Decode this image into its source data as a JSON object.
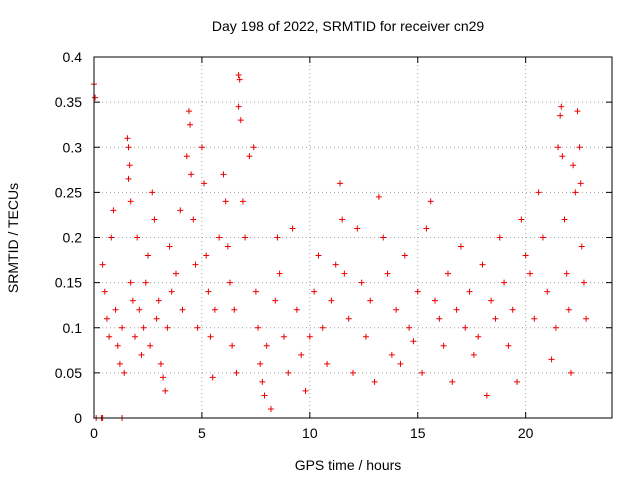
{
  "chart_data": {
    "type": "scatter",
    "title": "Day 198 of 2022, SRMTID for receiver cn29",
    "xlabel": "GPS time / hours",
    "ylabel": "SRMTID / TECUs",
    "xlim": [
      0,
      24
    ],
    "ylim": [
      0,
      0.4
    ],
    "x_ticks": [
      0,
      5,
      10,
      15,
      20
    ],
    "y_ticks": [
      0,
      0.05,
      0.1,
      0.15,
      0.2,
      0.25,
      0.3,
      0.35,
      0.4
    ],
    "x_tick_labels": [
      "0",
      "5",
      "10",
      "15",
      "20"
    ],
    "y_tick_labels": [
      "0",
      "0.05",
      "0.1",
      "0.15",
      "0.2",
      "0.25",
      "0.3",
      "0.35",
      "0.4"
    ],
    "grid": true,
    "marker": "+",
    "marker_color": "#ee0000",
    "series": [
      {
        "name": "SRMTID",
        "points": [
          [
            0.0,
            0.37
          ],
          [
            0.05,
            0.355
          ],
          [
            0.1,
            0.0
          ],
          [
            0.35,
            0.0
          ],
          [
            0.4,
            0.0
          ],
          [
            1.3,
            0.0
          ],
          [
            0.4,
            0.17
          ],
          [
            0.5,
            0.14
          ],
          [
            0.6,
            0.11
          ],
          [
            0.7,
            0.09
          ],
          [
            0.8,
            0.2
          ],
          [
            0.9,
            0.23
          ],
          [
            1.0,
            0.12
          ],
          [
            1.1,
            0.08
          ],
          [
            1.2,
            0.06
          ],
          [
            1.3,
            0.1
          ],
          [
            1.4,
            0.05
          ],
          [
            1.55,
            0.31
          ],
          [
            1.6,
            0.3
          ],
          [
            1.65,
            0.28
          ],
          [
            1.7,
            0.24
          ],
          [
            1.6,
            0.265
          ],
          [
            1.7,
            0.15
          ],
          [
            1.8,
            0.13
          ],
          [
            1.9,
            0.09
          ],
          [
            2.0,
            0.2
          ],
          [
            2.1,
            0.12
          ],
          [
            2.2,
            0.07
          ],
          [
            2.3,
            0.1
          ],
          [
            2.4,
            0.15
          ],
          [
            2.5,
            0.18
          ],
          [
            2.6,
            0.08
          ],
          [
            2.7,
            0.25
          ],
          [
            2.8,
            0.22
          ],
          [
            2.9,
            0.11
          ],
          [
            3.0,
            0.13
          ],
          [
            3.1,
            0.06
          ],
          [
            3.2,
            0.045
          ],
          [
            3.3,
            0.03
          ],
          [
            3.4,
            0.1
          ],
          [
            3.5,
            0.19
          ],
          [
            3.6,
            0.14
          ],
          [
            3.8,
            0.16
          ],
          [
            4.0,
            0.23
          ],
          [
            4.1,
            0.12
          ],
          [
            4.3,
            0.29
          ],
          [
            4.4,
            0.34
          ],
          [
            4.45,
            0.325
          ],
          [
            4.5,
            0.27
          ],
          [
            4.6,
            0.22
          ],
          [
            4.7,
            0.17
          ],
          [
            4.8,
            0.1
          ],
          [
            5.0,
            0.3
          ],
          [
            5.1,
            0.26
          ],
          [
            5.2,
            0.18
          ],
          [
            5.3,
            0.14
          ],
          [
            5.4,
            0.09
          ],
          [
            5.5,
            0.045
          ],
          [
            5.6,
            0.12
          ],
          [
            5.8,
            0.2
          ],
          [
            6.0,
            0.27
          ],
          [
            6.1,
            0.24
          ],
          [
            6.2,
            0.19
          ],
          [
            6.3,
            0.15
          ],
          [
            6.4,
            0.08
          ],
          [
            6.5,
            0.12
          ],
          [
            6.6,
            0.05
          ],
          [
            6.7,
            0.38
          ],
          [
            6.75,
            0.375
          ],
          [
            6.7,
            0.345
          ],
          [
            6.8,
            0.33
          ],
          [
            6.9,
            0.24
          ],
          [
            7.0,
            0.2
          ],
          [
            7.2,
            0.29
          ],
          [
            7.4,
            0.3
          ],
          [
            7.5,
            0.14
          ],
          [
            7.6,
            0.1
          ],
          [
            7.7,
            0.06
          ],
          [
            7.8,
            0.04
          ],
          [
            7.9,
            0.025
          ],
          [
            8.0,
            0.08
          ],
          [
            8.2,
            0.01
          ],
          [
            8.4,
            0.13
          ],
          [
            8.5,
            0.2
          ],
          [
            8.6,
            0.16
          ],
          [
            8.8,
            0.09
          ],
          [
            9.0,
            0.05
          ],
          [
            9.2,
            0.21
          ],
          [
            9.4,
            0.12
          ],
          [
            9.6,
            0.07
          ],
          [
            9.8,
            0.03
          ],
          [
            10.0,
            0.09
          ],
          [
            10.2,
            0.14
          ],
          [
            10.4,
            0.18
          ],
          [
            10.6,
            0.1
          ],
          [
            10.8,
            0.06
          ],
          [
            11.0,
            0.13
          ],
          [
            11.2,
            0.17
          ],
          [
            11.4,
            0.26
          ],
          [
            11.5,
            0.22
          ],
          [
            11.6,
            0.16
          ],
          [
            11.8,
            0.11
          ],
          [
            12.0,
            0.05
          ],
          [
            12.2,
            0.21
          ],
          [
            12.4,
            0.15
          ],
          [
            12.6,
            0.09
          ],
          [
            12.8,
            0.13
          ],
          [
            13.0,
            0.04
          ],
          [
            13.2,
            0.245
          ],
          [
            13.4,
            0.2
          ],
          [
            13.6,
            0.16
          ],
          [
            13.8,
            0.07
          ],
          [
            14.0,
            0.12
          ],
          [
            14.2,
            0.06
          ],
          [
            14.4,
            0.18
          ],
          [
            14.6,
            0.1
          ],
          [
            14.8,
            0.085
          ],
          [
            15.0,
            0.14
          ],
          [
            15.2,
            0.05
          ],
          [
            15.4,
            0.21
          ],
          [
            15.6,
            0.24
          ],
          [
            15.8,
            0.13
          ],
          [
            16.0,
            0.11
          ],
          [
            16.2,
            0.08
          ],
          [
            16.4,
            0.16
          ],
          [
            16.6,
            0.04
          ],
          [
            16.8,
            0.12
          ],
          [
            17.0,
            0.19
          ],
          [
            17.2,
            0.1
          ],
          [
            17.4,
            0.14
          ],
          [
            17.6,
            0.07
          ],
          [
            17.8,
            0.09
          ],
          [
            18.0,
            0.17
          ],
          [
            18.2,
            0.025
          ],
          [
            18.4,
            0.13
          ],
          [
            18.6,
            0.11
          ],
          [
            18.8,
            0.2
          ],
          [
            19.0,
            0.15
          ],
          [
            19.2,
            0.08
          ],
          [
            19.4,
            0.12
          ],
          [
            19.6,
            0.04
          ],
          [
            19.8,
            0.22
          ],
          [
            20.0,
            0.18
          ],
          [
            20.2,
            0.16
          ],
          [
            20.4,
            0.11
          ],
          [
            20.6,
            0.25
          ],
          [
            20.8,
            0.2
          ],
          [
            21.0,
            0.14
          ],
          [
            21.2,
            0.065
          ],
          [
            21.4,
            0.1
          ],
          [
            21.5,
            0.3
          ],
          [
            21.6,
            0.335
          ],
          [
            21.65,
            0.345
          ],
          [
            21.7,
            0.29
          ],
          [
            21.8,
            0.22
          ],
          [
            21.9,
            0.16
          ],
          [
            22.0,
            0.12
          ],
          [
            22.1,
            0.05
          ],
          [
            22.2,
            0.28
          ],
          [
            22.3,
            0.25
          ],
          [
            22.4,
            0.34
          ],
          [
            22.5,
            0.3
          ],
          [
            22.55,
            0.26
          ],
          [
            22.6,
            0.19
          ],
          [
            22.7,
            0.15
          ],
          [
            22.8,
            0.11
          ]
        ]
      }
    ]
  }
}
